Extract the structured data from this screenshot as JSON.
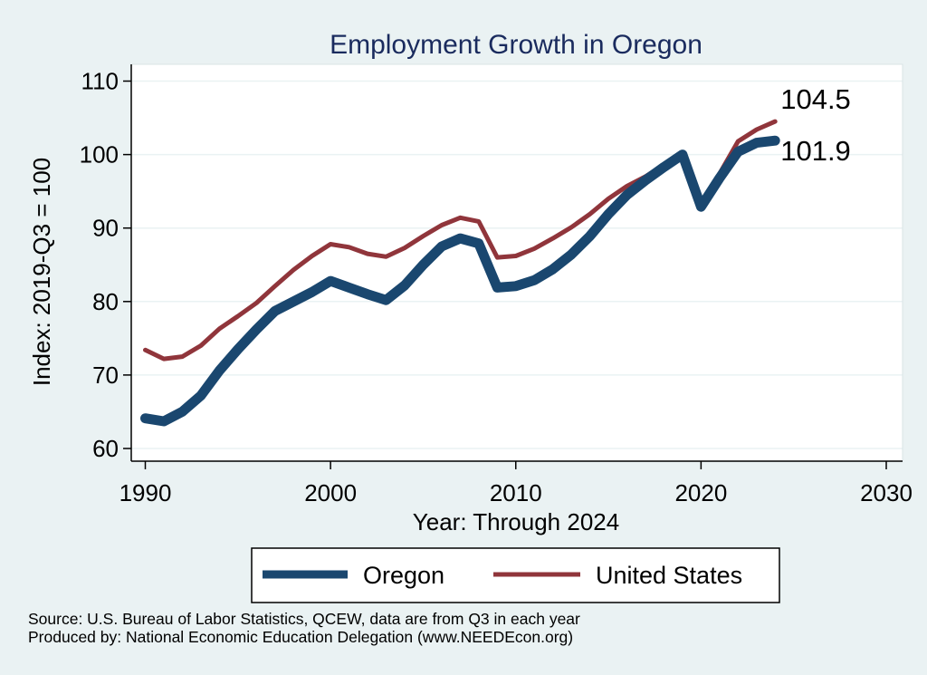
{
  "chart_data": {
    "type": "line",
    "title": "Employment Growth in Oregon",
    "xlabel": "Year: Through 2024",
    "ylabel": "Index: 2019-Q3 = 100",
    "xlim": [
      1990,
      2030
    ],
    "ylim": [
      60,
      110
    ],
    "x_ticks": [
      1990,
      2000,
      2010,
      2020,
      2030
    ],
    "y_ticks": [
      60,
      70,
      80,
      90,
      100,
      110
    ],
    "grid": true,
    "legend_position": "bottom",
    "x": [
      1990,
      1991,
      1992,
      1993,
      1994,
      1995,
      1996,
      1997,
      1998,
      1999,
      2000,
      2001,
      2002,
      2003,
      2004,
      2005,
      2006,
      2007,
      2008,
      2009,
      2010,
      2011,
      2012,
      2013,
      2014,
      2015,
      2016,
      2017,
      2018,
      2019,
      2020,
      2021,
      2022,
      2023,
      2024
    ],
    "series": [
      {
        "name": "Oregon",
        "color": "#1a476f",
        "values": [
          64.1,
          63.7,
          65.0,
          67.2,
          70.6,
          73.5,
          76.2,
          78.7,
          80.0,
          81.3,
          82.8,
          81.9,
          81.0,
          80.2,
          82.2,
          85.0,
          87.5,
          88.6,
          87.9,
          81.9,
          82.1,
          82.9,
          84.4,
          86.4,
          88.9,
          91.9,
          94.5,
          96.5,
          98.3,
          100.0,
          92.9,
          96.8,
          100.4,
          101.6,
          101.9
        ]
      },
      {
        "name": "United States",
        "color": "#90353b",
        "values": [
          73.4,
          72.2,
          72.5,
          74.0,
          76.3,
          78.0,
          79.8,
          82.1,
          84.3,
          86.2,
          87.8,
          87.4,
          86.5,
          86.1,
          87.3,
          88.9,
          90.4,
          91.4,
          90.9,
          86.0,
          86.2,
          87.2,
          88.6,
          90.1,
          91.9,
          94.0,
          95.7,
          97.0,
          98.6,
          100.0,
          92.7,
          97.4,
          101.8,
          103.4,
          104.5
        ]
      }
    ],
    "annotations": [
      {
        "text": "104.5",
        "series": "United States",
        "x": 2024,
        "y": 104.5
      },
      {
        "text": "101.9",
        "series": "Oregon",
        "x": 2024,
        "y": 101.9
      }
    ],
    "notes": [
      "Source: U.S. Bureau of Labor Statistics, QCEW, data are from Q3 in each year",
      "Produced by: National Economic Education Delegation (www.NEEDEcon.org)"
    ]
  },
  "colors": {
    "background": "#eaf2f3",
    "plot_background": "#ffffff",
    "title": "#1a2b5e",
    "grid": "#eaf2f3"
  }
}
